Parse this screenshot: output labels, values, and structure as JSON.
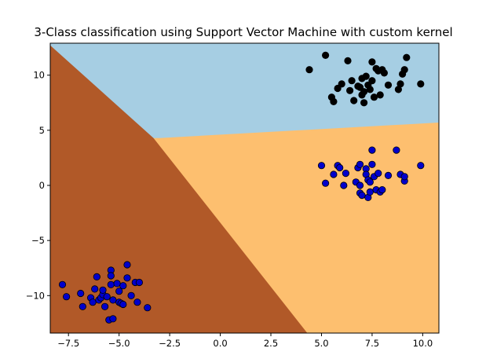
{
  "chart_data": {
    "type": "scatter",
    "title": "3-Class classification using Support Vector Machine with custom kernel",
    "xlabel": "",
    "ylabel": "",
    "xlim": [
      -8.4,
      10.8
    ],
    "ylim": [
      -13.4,
      12.9
    ],
    "xticks": [
      -7.5,
      -5.0,
      -2.5,
      0.0,
      2.5,
      5.0,
      7.5,
      10.0
    ],
    "xtick_labels": [
      "−7.5",
      "−5.0",
      "−2.5",
      "0.0",
      "2.5",
      "5.0",
      "7.5",
      "10.0"
    ],
    "yticks": [
      -10,
      -5,
      0,
      5,
      10
    ],
    "ytick_labels": [
      "−10",
      "−5",
      "0",
      "5",
      "10"
    ],
    "grid": false,
    "regions": {
      "class_0_color": "#b15928",
      "class_1_color": "#a6cee3",
      "class_2_color": "#fdbf6f",
      "boundary_1_2": [
        [
          -3.0,
          4.3
        ],
        [
          10.8,
          5.7
        ]
      ],
      "boundary_0_other": [
        [
          -8.4,
          12.7
        ],
        [
          -3.3,
          4.3
        ],
        [
          4.3,
          -13.4
        ]
      ]
    },
    "series": [
      {
        "marker_color": "#000000",
        "points": [
          [
            4.4,
            10.5
          ],
          [
            5.2,
            11.8
          ],
          [
            5.5,
            8.0
          ],
          [
            5.6,
            7.6
          ],
          [
            5.8,
            8.8
          ],
          [
            6.0,
            9.2
          ],
          [
            6.3,
            11.3
          ],
          [
            6.4,
            8.6
          ],
          [
            6.5,
            9.5
          ],
          [
            6.6,
            7.7
          ],
          [
            6.8,
            9.0
          ],
          [
            6.9,
            8.9
          ],
          [
            7.0,
            8.2
          ],
          [
            7.0,
            9.7
          ],
          [
            7.1,
            7.5
          ],
          [
            7.1,
            8.5
          ],
          [
            7.2,
            9.9
          ],
          [
            7.3,
            9.1
          ],
          [
            7.4,
            8.7
          ],
          [
            7.5,
            11.2
          ],
          [
            7.5,
            9.5
          ],
          [
            7.6,
            8.0
          ],
          [
            7.7,
            10.6
          ],
          [
            7.8,
            10.4
          ],
          [
            7.9,
            8.2
          ],
          [
            8.0,
            10.5
          ],
          [
            8.1,
            10.2
          ],
          [
            8.3,
            9.1
          ],
          [
            8.8,
            8.7
          ],
          [
            8.9,
            9.2
          ],
          [
            9.0,
            10.1
          ],
          [
            9.1,
            10.5
          ],
          [
            9.2,
            11.6
          ],
          [
            9.9,
            9.2
          ]
        ]
      },
      {
        "marker_color": "#0000cc",
        "points": [
          [
            5.0,
            1.8
          ],
          [
            5.2,
            0.2
          ],
          [
            5.6,
            1.0
          ],
          [
            5.8,
            1.8
          ],
          [
            5.9,
            1.6
          ],
          [
            6.1,
            0.0
          ],
          [
            6.2,
            1.1
          ],
          [
            6.7,
            0.3
          ],
          [
            6.8,
            1.6
          ],
          [
            6.9,
            1.9
          ],
          [
            6.9,
            0.0
          ],
          [
            6.9,
            -0.7
          ],
          [
            7.0,
            -0.9
          ],
          [
            7.2,
            1.5
          ],
          [
            7.2,
            1.0
          ],
          [
            7.3,
            0.5
          ],
          [
            7.3,
            -1.1
          ],
          [
            7.4,
            0.3
          ],
          [
            7.4,
            -0.6
          ],
          [
            7.5,
            1.9
          ],
          [
            7.5,
            3.2
          ],
          [
            7.6,
            0.8
          ],
          [
            7.7,
            -0.4
          ],
          [
            7.8,
            1.1
          ],
          [
            7.9,
            -0.6
          ],
          [
            8.0,
            -0.4
          ],
          [
            8.3,
            0.9
          ],
          [
            8.7,
            3.2
          ],
          [
            8.9,
            1.0
          ],
          [
            9.1,
            0.4
          ],
          [
            9.1,
            0.8
          ],
          [
            9.9,
            1.8
          ]
        ]
      },
      {
        "marker_color": "#0000cc",
        "points": [
          [
            -7.8,
            -9.0
          ],
          [
            -7.6,
            -10.1
          ],
          [
            -6.9,
            -9.8
          ],
          [
            -6.8,
            -11.0
          ],
          [
            -6.4,
            -10.2
          ],
          [
            -6.3,
            -10.6
          ],
          [
            -6.2,
            -9.4
          ],
          [
            -6.1,
            -8.3
          ],
          [
            -6.0,
            -10.4
          ],
          [
            -5.9,
            -10.2
          ],
          [
            -5.8,
            -9.9
          ],
          [
            -5.8,
            -9.5
          ],
          [
            -5.7,
            -11.0
          ],
          [
            -5.6,
            -10.1
          ],
          [
            -5.5,
            -12.2
          ],
          [
            -5.4,
            -7.7
          ],
          [
            -5.4,
            -8.2
          ],
          [
            -5.4,
            -9.0
          ],
          [
            -5.3,
            -12.1
          ],
          [
            -5.3,
            -10.4
          ],
          [
            -5.1,
            -8.9
          ],
          [
            -5.0,
            -10.6
          ],
          [
            -5.0,
            -9.6
          ],
          [
            -4.9,
            -10.7
          ],
          [
            -4.8,
            -9.1
          ],
          [
            -4.8,
            -10.8
          ],
          [
            -4.6,
            -7.2
          ],
          [
            -4.6,
            -8.4
          ],
          [
            -4.4,
            -10.0
          ],
          [
            -4.2,
            -8.8
          ],
          [
            -4.1,
            -10.6
          ],
          [
            -4.0,
            -8.8
          ],
          [
            -3.6,
            -11.1
          ]
        ]
      }
    ]
  }
}
